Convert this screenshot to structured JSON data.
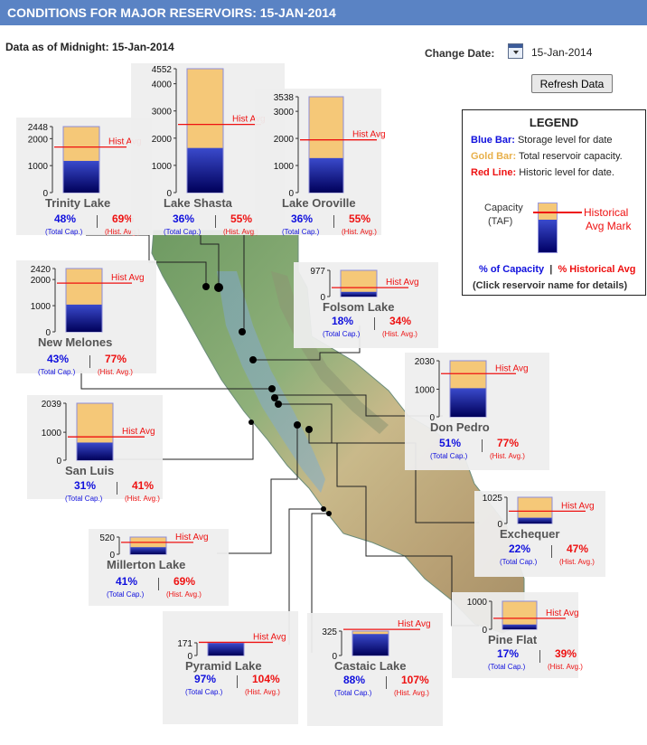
{
  "header": {
    "title": "CONDITIONS FOR MAJOR RESERVOIRS: 15-JAN-2014"
  },
  "as_of": "Data as of Midnight: 15-Jan-2014",
  "change_date": {
    "label": "Change Date:",
    "value": "15-Jan-2014"
  },
  "refresh_label": "Refresh Data",
  "legend": {
    "title": "LEGEND",
    "blue_key": "Blue Bar:",
    "blue_text": "Storage level for date",
    "gold_key": "Gold Bar:",
    "gold_text": "Total reservoir capacity.",
    "red_key": "Red Line:",
    "red_text": "Historic level for date.",
    "capacity_label_1": "Capacity",
    "capacity_label_2": "(TAF)",
    "historical_label_1": "Historical",
    "historical_label_2": "Avg Mark",
    "pct_capacity": "% of Capacity",
    "sep": "|",
    "pct_historical": "% Historical Avg",
    "click_note": "(Click reservoir name for details)"
  },
  "labels": {
    "hist_avg": "Hist Avg",
    "total_cap": "(Total Cap.)",
    "hist_avg_small": "(Hist. Avg.)"
  },
  "colors": {
    "storage": "#00008b",
    "capacity": "#f5c878",
    "hist_line": "#ee1111",
    "cap_text": "#1010dd",
    "hist_text": "#ee1111"
  },
  "chart_data": {
    "type": "bar",
    "units": "TAF",
    "reservoirs": [
      {
        "name": "Trinity Lake",
        "capacity": 2448,
        "pct_capacity": 48,
        "pct_hist_avg": 69,
        "pct_capacity_label": "48%",
        "pct_hist_label": "69%",
        "ticks": [
          {
            "value": 0,
            "label": "0"
          },
          {
            "value": 1000,
            "label": "1000"
          },
          {
            "value": 2000,
            "label": "2000"
          },
          {
            "value": 2448,
            "label": "2448"
          }
        ]
      },
      {
        "name": "Lake Shasta",
        "capacity": 4552,
        "pct_capacity": 36,
        "pct_hist_avg": 55,
        "pct_capacity_label": "36%",
        "pct_hist_label": "55%",
        "ticks": [
          {
            "value": 0,
            "label": "0"
          },
          {
            "value": 1000,
            "label": "1000"
          },
          {
            "value": 2000,
            "label": "2000"
          },
          {
            "value": 3000,
            "label": "3000"
          },
          {
            "value": 4000,
            "label": "4000"
          },
          {
            "value": 4552,
            "label": "4552"
          }
        ]
      },
      {
        "name": "Lake Oroville",
        "capacity": 3538,
        "pct_capacity": 36,
        "pct_hist_avg": 55,
        "pct_capacity_label": "36%",
        "pct_hist_label": "55%",
        "ticks": [
          {
            "value": 0,
            "label": "0"
          },
          {
            "value": 1000,
            "label": "1000"
          },
          {
            "value": 2000,
            "label": "2000"
          },
          {
            "value": 3000,
            "label": "3000"
          },
          {
            "value": 3538,
            "label": "3538"
          }
        ]
      },
      {
        "name": "Folsom Lake",
        "capacity": 977,
        "pct_capacity": 18,
        "pct_hist_avg": 34,
        "pct_capacity_label": "18%",
        "pct_hist_label": "34%",
        "ticks": [
          {
            "value": 0,
            "label": "0"
          },
          {
            "value": 977,
            "label": "977"
          }
        ]
      },
      {
        "name": "New Melones",
        "capacity": 2420,
        "pct_capacity": 43,
        "pct_hist_avg": 77,
        "pct_capacity_label": "43%",
        "pct_hist_label": "77%",
        "ticks": [
          {
            "value": 0,
            "label": "0"
          },
          {
            "value": 1000,
            "label": "1000"
          },
          {
            "value": 2000,
            "label": "2000"
          },
          {
            "value": 2420,
            "label": "2420"
          }
        ]
      },
      {
        "name": "Don Pedro",
        "capacity": 2030,
        "pct_capacity": 51,
        "pct_hist_avg": 77,
        "pct_capacity_label": "51%",
        "pct_hist_label": "77%",
        "ticks": [
          {
            "value": 0,
            "label": "0"
          },
          {
            "value": 1000,
            "label": "1000"
          },
          {
            "value": 2030,
            "label": "2030"
          }
        ]
      },
      {
        "name": "San Luis",
        "capacity": 2039,
        "pct_capacity": 31,
        "pct_hist_avg": 41,
        "pct_capacity_label": "31%",
        "pct_hist_label": "41%",
        "ticks": [
          {
            "value": 0,
            "label": "0"
          },
          {
            "value": 1000,
            "label": "1000"
          },
          {
            "value": 2039,
            "label": "2039"
          }
        ]
      },
      {
        "name": "Exchequer",
        "capacity": 1025,
        "pct_capacity": 22,
        "pct_hist_avg": 47,
        "pct_capacity_label": "22%",
        "pct_hist_label": "47%",
        "ticks": [
          {
            "value": 0,
            "label": "0"
          },
          {
            "value": 1025,
            "label": "1025"
          }
        ]
      },
      {
        "name": "Millerton Lake",
        "capacity": 520,
        "pct_capacity": 41,
        "pct_hist_avg": 69,
        "pct_capacity_label": "41%",
        "pct_hist_label": "69%",
        "ticks": [
          {
            "value": 0,
            "label": "0"
          },
          {
            "value": 520,
            "label": "520"
          }
        ]
      },
      {
        "name": "Pine Flat",
        "capacity": 1000,
        "pct_capacity": 17,
        "pct_hist_avg": 39,
        "pct_capacity_label": "17%",
        "pct_hist_label": "39%",
        "ticks": [
          {
            "value": 0,
            "label": "0"
          },
          {
            "value": 1000,
            "label": "1000"
          }
        ]
      },
      {
        "name": "Pyramid Lake",
        "capacity": 171,
        "pct_capacity": 97,
        "pct_hist_avg": 104,
        "pct_capacity_label": "97%",
        "pct_hist_label": "104%",
        "ticks": [
          {
            "value": 0,
            "label": "0"
          },
          {
            "value": 171,
            "label": "171"
          }
        ]
      },
      {
        "name": "Castaic Lake",
        "capacity": 325,
        "pct_capacity": 88,
        "pct_hist_avg": 107,
        "pct_capacity_label": "88%",
        "pct_hist_label": "107%",
        "ticks": [
          {
            "value": 0,
            "label": "0"
          },
          {
            "value": 325,
            "label": "325"
          }
        ]
      }
    ]
  }
}
